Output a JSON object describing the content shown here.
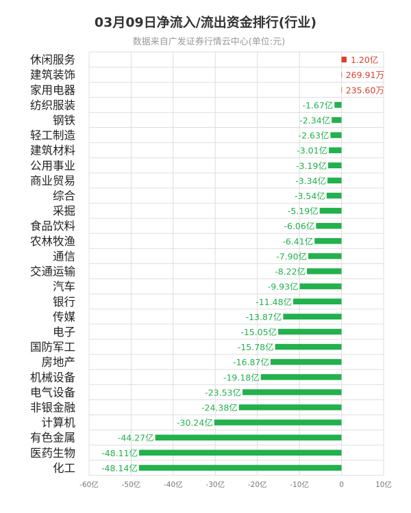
{
  "chart_data": {
    "type": "bar",
    "orientation": "horizontal",
    "title": "03月09日净流入/流出资金排行(行业)",
    "subtitle": "数据来自广发证券行情云中心(单位:元)",
    "xlim": [
      -60,
      10
    ],
    "ticks": [
      "-60亿",
      "-50亿",
      "-40亿",
      "-30亿",
      "-20亿",
      "-10亿",
      "0",
      "10亿"
    ],
    "tick_values": [
      -60,
      -50,
      -40,
      -30,
      -20,
      -10,
      0,
      10
    ],
    "grid": true,
    "categories": [
      "休闲服务",
      "建筑装饰",
      "家用电器",
      "纺织服装",
      "钢铁",
      "轻工制造",
      "建筑材料",
      "公用事业",
      "商业贸易",
      "综合",
      "采掘",
      "食品饮料",
      "农林牧渔",
      "通信",
      "交通运输",
      "汽车",
      "银行",
      "传媒",
      "电子",
      "国防军工",
      "房地产",
      "机械设备",
      "电气设备",
      "非银金融",
      "计算机",
      "有色金属",
      "医药生物",
      "化工"
    ],
    "values": [
      1.2,
      0.026991,
      0.02356,
      -1.67,
      -2.34,
      -2.63,
      -3.01,
      -3.19,
      -3.34,
      -3.54,
      -5.19,
      -6.06,
      -6.41,
      -7.9,
      -8.22,
      -9.93,
      -11.48,
      -13.87,
      -15.05,
      -15.78,
      -16.87,
      -19.18,
      -23.53,
      -24.38,
      -30.24,
      -44.27,
      -48.11,
      -48.14
    ],
    "labels": [
      "1.20亿",
      "269.91万",
      "235.60万",
      "-1.67亿",
      "-2.34亿",
      "-2.63亿",
      "-3.01亿",
      "-3.19亿",
      "-3.34亿",
      "-3.54亿",
      "-5.19亿",
      "-6.06亿",
      "-6.41亿",
      "-7.90亿",
      "-8.22亿",
      "-9.93亿",
      "-11.48亿",
      "-13.87亿",
      "-15.05亿",
      "-15.78亿",
      "-16.87亿",
      "-19.18亿",
      "-23.53亿",
      "-24.38亿",
      "-30.24亿",
      "-44.27亿",
      "-48.11亿",
      "-48.14亿"
    ],
    "colors": {
      "positive": "#d9412f",
      "negative": "#22b14c",
      "grid": "#dddddd",
      "axis_text": "#777777",
      "category_text": "#222222"
    }
  }
}
